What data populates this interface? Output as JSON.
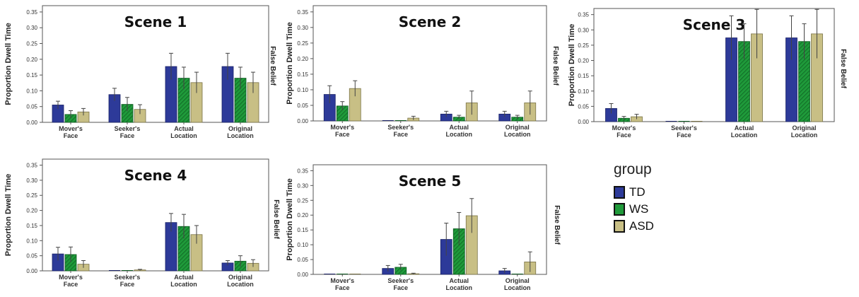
{
  "figure": {
    "y_axis_label": "Proportion Dwell Time",
    "side_label": "False Belief",
    "category_line1": [
      "Mover's",
      "Seeker's",
      "Actual",
      "Original"
    ],
    "category_line2": [
      "Face",
      "Face",
      "Location",
      "Location"
    ]
  },
  "legend": {
    "title": "group",
    "items": [
      {
        "label": "TD",
        "color": "#2d3a99"
      },
      {
        "label": "WS",
        "color": "#1f9a3a"
      },
      {
        "label": "ASD",
        "color": "#c8bf85"
      }
    ]
  },
  "chart_data": [
    {
      "type": "bar",
      "title": "Scene 1",
      "categories": [
        "Mover's Face",
        "Seeker's Face",
        "Actual Location",
        "Original Location"
      ],
      "ylabel": "Proportion Dwell Time",
      "ylim": [
        0,
        0.37
      ],
      "yticks": [
        "0.00",
        "0.05",
        "0.10",
        "0.15",
        "0.20",
        "0.25",
        "0.30",
        "0.35"
      ],
      "series": [
        {
          "name": "TD",
          "values": [
            0.055,
            0.088,
            0.177,
            0.177
          ],
          "err": [
            0.012,
            0.02,
            0.042,
            0.042
          ]
        },
        {
          "name": "WS",
          "values": [
            0.025,
            0.057,
            0.14,
            0.14
          ],
          "err": [
            0.012,
            0.022,
            0.035,
            0.035
          ]
        },
        {
          "name": "ASD",
          "values": [
            0.033,
            0.041,
            0.126,
            0.126
          ],
          "err": [
            0.011,
            0.015,
            0.033,
            0.033
          ]
        }
      ]
    },
    {
      "type": "bar",
      "title": "Scene 2",
      "categories": [
        "Mover's Face",
        "Seeker's Face",
        "Actual Location",
        "Original Location"
      ],
      "ylabel": "Proportion Dwell Time",
      "ylim": [
        0,
        0.37
      ],
      "yticks": [
        "0.00",
        "0.05",
        "0.10",
        "0.15",
        "0.20",
        "0.25",
        "0.30",
        "0.35"
      ],
      "series": [
        {
          "name": "TD",
          "values": [
            0.085,
            0.0,
            0.022,
            0.022
          ],
          "err": [
            0.028,
            0.0,
            0.009,
            0.009
          ]
        },
        {
          "name": "WS",
          "values": [
            0.048,
            0.0,
            0.012,
            0.012
          ],
          "err": [
            0.014,
            0.0,
            0.006,
            0.006
          ]
        },
        {
          "name": "ASD",
          "values": [
            0.104,
            0.009,
            0.058,
            0.058
          ],
          "err": [
            0.025,
            0.006,
            0.038,
            0.038
          ]
        }
      ]
    },
    {
      "type": "bar",
      "title": "Scene 3",
      "categories": [
        "Mover's Face",
        "Seeker's Face",
        "Actual Location",
        "Original Location"
      ],
      "ylabel": "Proportion Dwell Time",
      "ylim": [
        0,
        0.37
      ],
      "yticks": [
        "0.00",
        "0.05",
        "0.10",
        "0.15",
        "0.20",
        "0.25",
        "0.30",
        "0.35"
      ],
      "series": [
        {
          "name": "TD",
          "values": [
            0.043,
            0.0,
            0.274,
            0.274
          ],
          "err": [
            0.016,
            0.0,
            0.072,
            0.072
          ]
        },
        {
          "name": "WS",
          "values": [
            0.011,
            0.0,
            0.262,
            0.262
          ],
          "err": [
            0.006,
            0.0,
            0.058,
            0.058
          ]
        },
        {
          "name": "ASD",
          "values": [
            0.016,
            0.0,
            0.287,
            0.287
          ],
          "err": [
            0.008,
            0.0,
            0.08,
            0.08
          ]
        }
      ]
    },
    {
      "type": "bar",
      "title": "Scene 4",
      "categories": [
        "Mover's Face",
        "Seeker's Face",
        "Actual Location",
        "Original Location"
      ],
      "ylabel": "Proportion Dwell Time",
      "ylim": [
        0,
        0.37
      ],
      "yticks": [
        "0.00",
        "0.05",
        "0.10",
        "0.15",
        "0.20",
        "0.25",
        "0.30",
        "0.35"
      ],
      "series": [
        {
          "name": "TD",
          "values": [
            0.056,
            0.0,
            0.16,
            0.026
          ],
          "err": [
            0.022,
            0.0,
            0.03,
            0.008
          ]
        },
        {
          "name": "WS",
          "values": [
            0.054,
            0.0,
            0.147,
            0.032
          ],
          "err": [
            0.025,
            0.0,
            0.04,
            0.018
          ]
        },
        {
          "name": "ASD",
          "values": [
            0.022,
            0.003,
            0.12,
            0.025
          ],
          "err": [
            0.012,
            0.002,
            0.03,
            0.012
          ]
        }
      ]
    },
    {
      "type": "bar",
      "title": "Scene 5",
      "categories": [
        "Mover's Face",
        "Seeker's Face",
        "Actual Location",
        "Original Location"
      ],
      "ylabel": "Proportion Dwell Time",
      "ylim": [
        0,
        0.37
      ],
      "yticks": [
        "0.00",
        "0.05",
        "0.10",
        "0.15",
        "0.20",
        "0.25",
        "0.30",
        "0.35"
      ],
      "series": [
        {
          "name": "TD",
          "values": [
            0.0,
            0.02,
            0.118,
            0.012
          ],
          "err": [
            0.0,
            0.01,
            0.055,
            0.008
          ]
        },
        {
          "name": "WS",
          "values": [
            0.0,
            0.024,
            0.154,
            0.0
          ],
          "err": [
            0.0,
            0.01,
            0.055,
            0.0
          ]
        },
        {
          "name": "ASD",
          "values": [
            0.0,
            0.002,
            0.198,
            0.042
          ],
          "err": [
            0.0,
            0.002,
            0.058,
            0.034
          ]
        }
      ]
    }
  ]
}
